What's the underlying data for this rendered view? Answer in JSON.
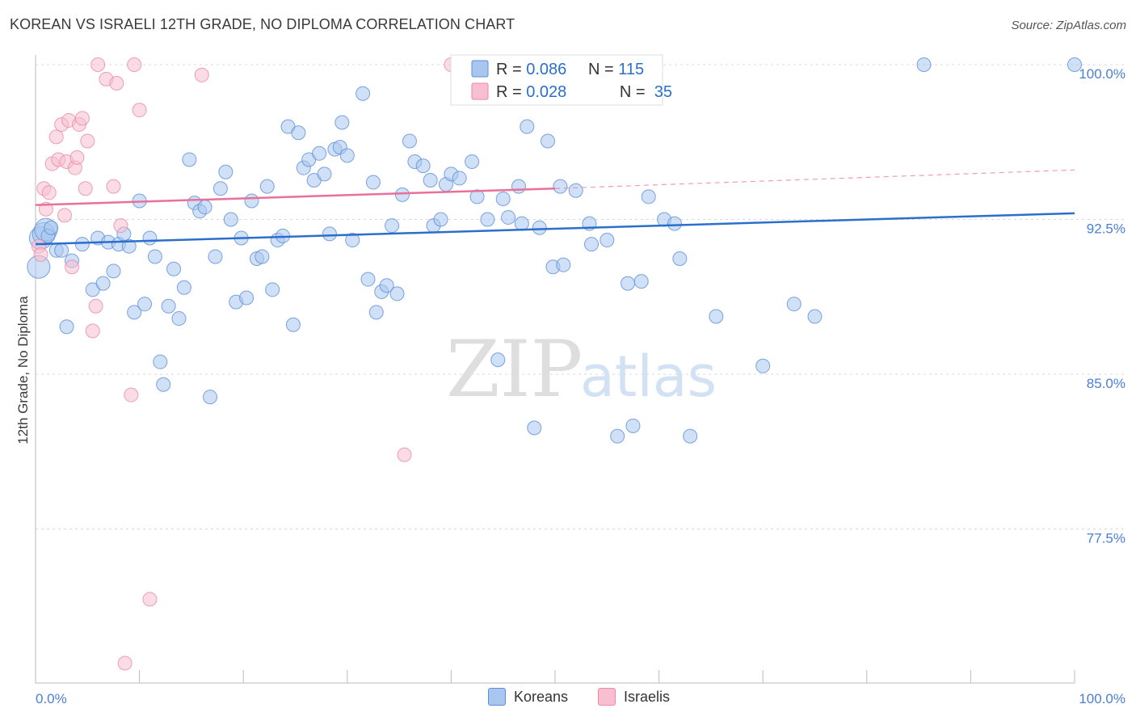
{
  "title": "KOREAN VS ISRAELI 12TH GRADE, NO DIPLOMA CORRELATION CHART",
  "source": "Source: ZipAtlas.com",
  "watermark": {
    "zip": "ZIP",
    "atlas": "atlas"
  },
  "legend_top": [
    {
      "r_label": "R = ",
      "r_value": "0.086",
      "n_label": "N = ",
      "n_value": "115"
    },
    {
      "r_label": "R = ",
      "r_value": "0.028",
      "n_label": "N = ",
      "n_value": " 35"
    }
  ],
  "legend_bottom": [
    {
      "label": "Koreans"
    },
    {
      "label": "Israelis"
    }
  ],
  "colors": {
    "korean_fill": "#a9c6ee",
    "korean_stroke": "#5b8ed8",
    "korean_line": "#2a6fcc",
    "israeli_fill": "#f7bfd0",
    "israeli_stroke": "#e98aa6",
    "israeli_line": "#e8709a",
    "tick_text": "#4a7fd4",
    "grid": "#d8d8d8"
  },
  "chart_data": {
    "type": "scatter",
    "title": "KOREAN VS ISRAELI 12TH GRADE, NO DIPLOMA CORRELATION CHART",
    "xlabel": "",
    "ylabel": "12th Grade, No Diploma",
    "xlim": [
      0,
      100
    ],
    "ylim": [
      70.5,
      101.3
    ],
    "x_tick_labels": [
      "0.0%",
      "100.0%"
    ],
    "y_ticks": [
      77.5,
      85.0,
      92.5,
      100.0
    ],
    "y_tick_labels": [
      "77.5%",
      "85.0%",
      "92.5%",
      "100.0%"
    ],
    "grid": true,
    "legend_position": "top-center",
    "series": [
      {
        "name": "Koreans",
        "R": 0.086,
        "N": 115,
        "trend": {
          "x0": 0,
          "y0": 91.3,
          "x1": 100,
          "y1": 92.8
        },
        "points": [
          [
            0.3,
            90.2
          ],
          [
            0.5,
            91.6
          ],
          [
            0.8,
            91.8
          ],
          [
            1.0,
            92.0
          ],
          [
            1.2,
            91.7
          ],
          [
            1.5,
            92.1
          ],
          [
            2.0,
            91.0
          ],
          [
            2.5,
            91.0
          ],
          [
            3.0,
            87.3
          ],
          [
            3.5,
            90.5
          ],
          [
            4.5,
            91.3
          ],
          [
            5.5,
            89.1
          ],
          [
            6.0,
            91.6
          ],
          [
            6.5,
            89.4
          ],
          [
            7.0,
            91.4
          ],
          [
            7.5,
            90.0
          ],
          [
            8.0,
            91.3
          ],
          [
            8.5,
            91.8
          ],
          [
            9.0,
            91.2
          ],
          [
            9.5,
            88.0
          ],
          [
            10.0,
            93.4
          ],
          [
            10.5,
            88.4
          ],
          [
            11.0,
            91.6
          ],
          [
            11.5,
            90.7
          ],
          [
            12.0,
            85.6
          ],
          [
            12.3,
            84.5
          ],
          [
            12.8,
            88.3
          ],
          [
            13.3,
            90.1
          ],
          [
            13.8,
            87.7
          ],
          [
            14.3,
            89.2
          ],
          [
            14.8,
            95.4
          ],
          [
            15.3,
            93.3
          ],
          [
            15.8,
            92.9
          ],
          [
            16.3,
            93.1
          ],
          [
            16.8,
            83.9
          ],
          [
            17.3,
            90.7
          ],
          [
            17.8,
            94.0
          ],
          [
            18.3,
            94.8
          ],
          [
            18.8,
            92.5
          ],
          [
            19.3,
            88.5
          ],
          [
            19.8,
            91.6
          ],
          [
            20.3,
            88.7
          ],
          [
            20.8,
            93.4
          ],
          [
            21.3,
            90.6
          ],
          [
            21.8,
            90.7
          ],
          [
            22.3,
            94.1
          ],
          [
            22.8,
            89.1
          ],
          [
            23.3,
            91.5
          ],
          [
            23.8,
            91.7
          ],
          [
            24.3,
            97.0
          ],
          [
            24.8,
            87.4
          ],
          [
            25.3,
            96.7
          ],
          [
            25.8,
            95.0
          ],
          [
            26.3,
            95.4
          ],
          [
            26.8,
            94.4
          ],
          [
            27.3,
            95.7
          ],
          [
            27.8,
            94.7
          ],
          [
            28.3,
            91.8
          ],
          [
            28.8,
            95.9
          ],
          [
            29.3,
            96.0
          ],
          [
            29.5,
            97.2
          ],
          [
            30.0,
            95.6
          ],
          [
            30.5,
            91.5
          ],
          [
            31.5,
            98.6
          ],
          [
            32.0,
            89.6
          ],
          [
            32.5,
            94.3
          ],
          [
            32.8,
            88.0
          ],
          [
            33.3,
            89.0
          ],
          [
            33.8,
            89.3
          ],
          [
            34.3,
            92.2
          ],
          [
            34.8,
            88.9
          ],
          [
            35.3,
            93.7
          ],
          [
            36.0,
            96.3
          ],
          [
            36.5,
            95.3
          ],
          [
            37.3,
            95.1
          ],
          [
            38.0,
            94.4
          ],
          [
            38.3,
            92.2
          ],
          [
            39.0,
            92.5
          ],
          [
            39.5,
            94.2
          ],
          [
            40.0,
            94.7
          ],
          [
            40.8,
            94.5
          ],
          [
            42.0,
            95.3
          ],
          [
            42.5,
            93.6
          ],
          [
            43.5,
            92.5
          ],
          [
            44.5,
            85.7
          ],
          [
            45.0,
            93.5
          ],
          [
            45.5,
            92.6
          ],
          [
            46.5,
            94.1
          ],
          [
            46.8,
            92.3
          ],
          [
            47.3,
            97.0
          ],
          [
            48.0,
            82.4
          ],
          [
            48.5,
            92.1
          ],
          [
            49.3,
            96.3
          ],
          [
            49.8,
            90.2
          ],
          [
            50.5,
            94.1
          ],
          [
            50.8,
            90.3
          ],
          [
            52.0,
            93.9
          ],
          [
            53.3,
            92.3
          ],
          [
            53.5,
            91.3
          ],
          [
            55.0,
            91.5
          ],
          [
            56.0,
            82.0
          ],
          [
            57.0,
            89.4
          ],
          [
            57.5,
            82.5
          ],
          [
            58.3,
            89.5
          ],
          [
            59.0,
            93.6
          ],
          [
            60.5,
            92.5
          ],
          [
            61.5,
            92.3
          ],
          [
            62.0,
            90.6
          ],
          [
            63.0,
            82.0
          ],
          [
            65.5,
            87.8
          ],
          [
            70.0,
            85.4
          ],
          [
            73.0,
            88.4
          ],
          [
            75.0,
            87.8
          ],
          [
            85.5,
            100.0
          ],
          [
            100.0,
            100.0
          ]
        ]
      },
      {
        "name": "Israelis",
        "R": 0.028,
        "N": 35,
        "trend": {
          "x0": 0,
          "y0": 93.2,
          "x1": 50,
          "y1": 94.0
        },
        "trend_dashed": {
          "x0": 50,
          "y0": 94.0,
          "x1": 100,
          "y1": 94.9
        },
        "points": [
          [
            0.3,
            91.2
          ],
          [
            0.5,
            90.8
          ],
          [
            0.8,
            94.0
          ],
          [
            1.0,
            93.0
          ],
          [
            1.3,
            93.8
          ],
          [
            1.6,
            95.2
          ],
          [
            2.0,
            96.5
          ],
          [
            2.2,
            95.4
          ],
          [
            2.5,
            97.1
          ],
          [
            2.8,
            92.7
          ],
          [
            3.0,
            95.3
          ],
          [
            3.2,
            97.3
          ],
          [
            3.5,
            90.2
          ],
          [
            3.8,
            95.0
          ],
          [
            4.0,
            95.5
          ],
          [
            4.2,
            97.1
          ],
          [
            4.5,
            97.4
          ],
          [
            4.8,
            94.0
          ],
          [
            5.0,
            96.3
          ],
          [
            5.5,
            87.1
          ],
          [
            5.8,
            88.3
          ],
          [
            6.0,
            100.0
          ],
          [
            6.8,
            99.3
          ],
          [
            7.5,
            94.1
          ],
          [
            7.8,
            99.1
          ],
          [
            8.2,
            92.2
          ],
          [
            8.6,
            71.0
          ],
          [
            9.2,
            84.0
          ],
          [
            9.5,
            100.0
          ],
          [
            10.0,
            97.8
          ],
          [
            11.0,
            74.1
          ],
          [
            16.0,
            99.5
          ],
          [
            35.5,
            81.1
          ],
          [
            40.0,
            100.0
          ],
          [
            45.0,
            100.0
          ]
        ]
      }
    ]
  }
}
